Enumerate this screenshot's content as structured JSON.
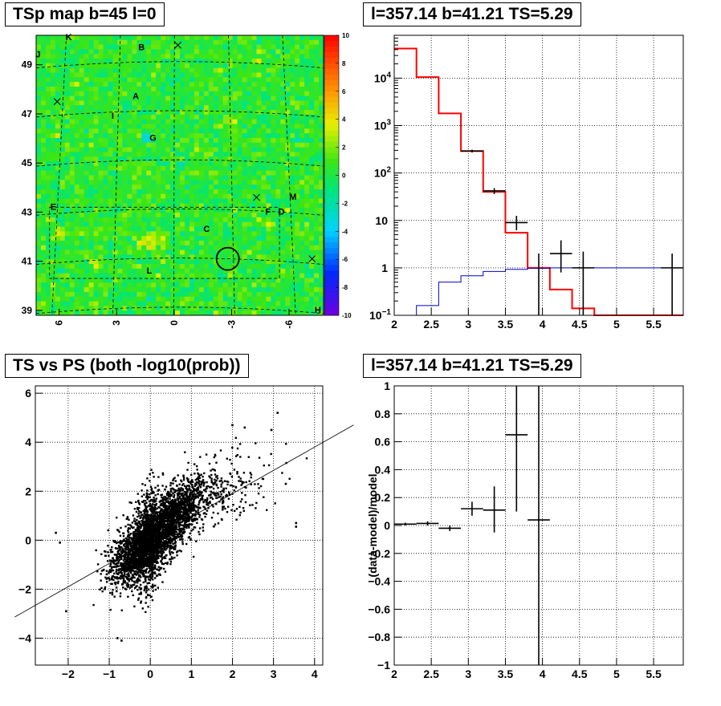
{
  "chart_data": [
    {
      "type": "heatmap",
      "title": "TSp map b=45 l=0",
      "x_ticks": [
        "6",
        "3",
        "0",
        "-3",
        "-6"
      ],
      "y_ticks": [
        "39",
        "41",
        "43",
        "45",
        "47",
        "49"
      ],
      "ylim": [
        38.8,
        50.2
      ],
      "xlim": [
        7.2,
        -7.8
      ],
      "colorbar": {
        "range": [
          -10,
          10
        ],
        "ticks": [
          "10",
          "8",
          "6",
          "4",
          "2",
          "0",
          "-2",
          "-4",
          "-6",
          "-8",
          "-10"
        ]
      },
      "source_labels": [
        {
          "text": "K",
          "l": 5.5,
          "b": 50.0
        },
        {
          "text": "B",
          "l": 1.7,
          "b": 49.6
        },
        {
          "text": "J",
          "l": 7.1,
          "b": 49.3
        },
        {
          "text": "A",
          "l": 2.0,
          "b": 47.6
        },
        {
          "text": "I",
          "l": 3.2,
          "b": 46.8
        },
        {
          "text": "G",
          "l": 1.1,
          "b": 45.9
        },
        {
          "text": "E",
          "l": 6.3,
          "b": 43.1
        },
        {
          "text": "C",
          "l": -1.7,
          "b": 42.2
        },
        {
          "text": "F",
          "l": -4.9,
          "b": 42.9
        },
        {
          "text": "D",
          "l": -5.6,
          "b": 42.9
        },
        {
          "text": "M",
          "l": -6.2,
          "b": 43.5
        },
        {
          "text": "L",
          "l": 1.3,
          "b": 40.5
        },
        {
          "text": "H",
          "l": -7.5,
          "b": 38.9
        }
      ],
      "circle": {
        "l": -2.8,
        "b": 41.1
      },
      "crosses": [
        {
          "l": 6.1,
          "b": 47.5
        },
        {
          "l": -0.2,
          "b": 49.8
        },
        {
          "l": -4.3,
          "b": 43.6
        },
        {
          "l": -7.2,
          "b": 41.1
        }
      ]
    },
    {
      "type": "line",
      "title": "l=357.14 b=41.21 TS=5.29",
      "y_scale": "log",
      "xlim": [
        2,
        5.9
      ],
      "ylim": [
        0.1,
        80000
      ],
      "x_ticks": [
        "2",
        "2.5",
        "3",
        "3.5",
        "4",
        "4.5",
        "5",
        "5.5"
      ],
      "y_ticks": [
        "10^-1",
        "1",
        "10",
        "10^2",
        "10^3",
        "10^4"
      ],
      "series": [
        {
          "color": "#ff0000",
          "edges": [
            2.0,
            2.3,
            2.6,
            2.9,
            3.2,
            3.5,
            3.8,
            4.1,
            4.4,
            4.7,
            5.0,
            5.3,
            5.6,
            5.9
          ],
          "values": [
            42000,
            10500,
            1800,
            290,
            40,
            5.5,
            1.0,
            0.35,
            0.14,
            0.1,
            0.1,
            0.1,
            0.1
          ]
        },
        {
          "color": "#0000cc",
          "edges": [
            2.0,
            2.3,
            2.6,
            2.9,
            3.2,
            3.5,
            3.8,
            4.1,
            4.4,
            4.7,
            5.0,
            5.3,
            5.6,
            5.9
          ],
          "values": [
            0.1,
            0.16,
            0.5,
            0.68,
            0.84,
            0.93,
            0.98,
            1.0,
            1.0,
            1.0,
            1.0,
            1.0,
            1.0
          ]
        }
      ],
      "points": [
        {
          "x": 3.05,
          "y": 290,
          "xerr": 0.15,
          "lo": 270,
          "hi": 310
        },
        {
          "x": 3.35,
          "y": 42,
          "xerr": 0.15,
          "lo": 36,
          "hi": 48
        },
        {
          "x": 3.65,
          "y": 9,
          "xerr": 0.15,
          "lo": 6.2,
          "hi": 12.5
        },
        {
          "x": 3.95,
          "y": 0.1,
          "xerr": 0.0,
          "lo": 0.1,
          "hi": 2.0
        },
        {
          "x": 4.25,
          "y": 2.0,
          "xerr": 0.15,
          "lo": 0.8,
          "hi": 3.8
        },
        {
          "x": 4.55,
          "y": 1.0,
          "xerr": 0.15,
          "lo": 0.1,
          "hi": 2.2
        },
        {
          "x": 5.75,
          "y": 1.0,
          "xerr": 0.15,
          "lo": 0.1,
          "hi": 2.0
        }
      ]
    },
    {
      "type": "scatter",
      "title": "TS vs PS (both -log10(prob))",
      "xlim": [
        -2.8,
        4.2
      ],
      "ylim": [
        -5.1,
        6.3
      ],
      "x_ticks": [
        "−2",
        "−1",
        "0",
        "1",
        "2",
        "3",
        "4"
      ],
      "y_ticks": [
        "−4",
        "−2",
        "0",
        "2",
        "4",
        "6"
      ],
      "fit_line": {
        "slope": 0.95,
        "intercept": 0.0
      },
      "clusters": [
        {
          "cx": 0.45,
          "cy": 0.75,
          "sx": 0.45,
          "sy": 0.85,
          "rho": 0.7,
          "n": 1700
        },
        {
          "cx": -0.3,
          "cy": -0.45,
          "sx": 0.35,
          "sy": 0.7,
          "rho": 0.55,
          "n": 1300
        },
        {
          "cx": -0.05,
          "cy": -0.1,
          "sx": 0.18,
          "sy": 1.1,
          "rho": 0.2,
          "n": 700
        },
        {
          "cx": 1.3,
          "cy": 1.6,
          "sx": 0.8,
          "sy": 0.9,
          "rho": 0.6,
          "n": 350
        }
      ],
      "outliers": [
        {
          "x": 3.55,
          "y": 0.7
        },
        {
          "x": 3.55,
          "y": 0.55
        },
        {
          "x": 3.1,
          "y": 5.2
        },
        {
          "x": 2.95,
          "y": 4.5
        },
        {
          "x": 2.3,
          "y": 4.6
        },
        {
          "x": 2.0,
          "y": 4.7
        },
        {
          "x": -0.7,
          "y": -4.1
        },
        {
          "x": -0.8,
          "y": -4.0
        },
        {
          "x": -2.05,
          "y": -2.9
        },
        {
          "x": -2.2,
          "y": -0.1
        },
        {
          "x": -2.3,
          "y": 0.3
        },
        {
          "x": 3.3,
          "y": 2.3
        }
      ]
    },
    {
      "type": "scatter",
      "title": "l=357.14 b=41.21 TS=5.29",
      "ylabel": "(data-model)/model",
      "xlim": [
        2,
        5.9
      ],
      "ylim": [
        -1,
        1
      ],
      "x_ticks": [
        "2",
        "2.5",
        "3",
        "3.5",
        "4",
        "4.5",
        "5",
        "5.5"
      ],
      "y_ticks": [
        "−1",
        "−0.8",
        "−0.6",
        "−0.4",
        "−0.2",
        "0",
        "0.2",
        "0.4",
        "0.6",
        "0.8",
        "1"
      ],
      "points": [
        {
          "x": 2.15,
          "y": 0.01,
          "xerr": 0.15,
          "lo": 0.0,
          "hi": 0.02
        },
        {
          "x": 2.45,
          "y": 0.015,
          "xerr": 0.15,
          "lo": 0.0,
          "hi": 0.03
        },
        {
          "x": 2.75,
          "y": -0.02,
          "xerr": 0.15,
          "lo": -0.04,
          "hi": 0.0
        },
        {
          "x": 3.05,
          "y": 0.12,
          "xerr": 0.15,
          "lo": 0.07,
          "hi": 0.17
        },
        {
          "x": 3.35,
          "y": 0.11,
          "xerr": 0.15,
          "lo": -0.05,
          "hi": 0.28
        },
        {
          "x": 3.65,
          "y": 0.65,
          "xerr": 0.15,
          "lo": 0.1,
          "hi": 1.0
        },
        {
          "x": 3.95,
          "y": 0.04,
          "xerr": 0.15,
          "lo": -1.0,
          "hi": 1.0
        }
      ]
    }
  ]
}
